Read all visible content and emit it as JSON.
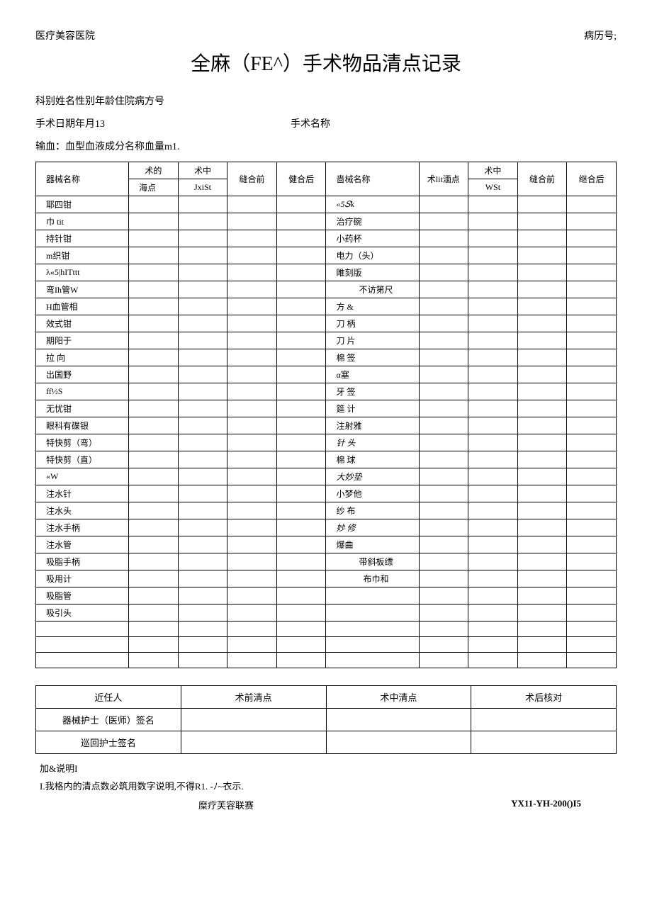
{
  "header": {
    "hospital": "医疗美容医院",
    "record_no_label": "病历号;"
  },
  "title": "全麻（FE^）手术物品清点记录",
  "info": {
    "line1": "科别姓名性别年龄住院病方号",
    "line2_left": "手术日期年月13",
    "line2_right": "手术名称",
    "line3": "输血：血型血液成分名称血量m1."
  },
  "table_headers": {
    "instrument_name": "器械名称",
    "pre_op_top": "术的",
    "pre_op_bot": "海点",
    "intra_op_top": "术中",
    "intra_op_bot": "JxiSt",
    "before_suture": "缝合前",
    "after_suture": "健合后",
    "instrument_name2": "啬械名称",
    "pre_op2": "术lit湎点",
    "intra_op2_top": "术中",
    "intra_op2_bot": "WSt",
    "before_suture2": "缝合前",
    "after_suture2": "继合后"
  },
  "rows_left": [
    "耶四钳",
    "巾        tit",
    "持针钳",
    "m织钳",
    "λ«5|hITttt",
    "弯Ih管W",
    "H血管相",
    "效式钳",
    "期阳于",
    "拉        向",
    "出国野",
    "ff½S",
    "无忧钳",
    "眼科有碟银",
    "特快剪（弯）",
    "特快剪（直）",
    "«W",
    "注水针",
    "注水头",
    "注水手柄",
    "注水管",
    "吸脂手柄",
    "吸用计",
    "吸脂管",
    "吸引头",
    "",
    "",
    ""
  ],
  "rows_right": [
    "«5𝑆k",
    "治疗碗",
    "小药杯",
    "电力（头）",
    "睢刻版",
    "不访第尺",
    "方        &",
    "刀        柄",
    "刀        片",
    "棉        签",
    "α塞",
    "牙        签",
    "筵        计",
    "注射雅",
    "针        头",
    "棉        球",
    "大妙垫",
    "小梦他",
    "纱        布",
    "妙        修",
    "爆曲",
    "带斜板缥",
    "布巾和",
    "",
    "",
    "",
    "",
    ""
  ],
  "rows_right_center": [
    false,
    false,
    false,
    false,
    false,
    true,
    false,
    false,
    false,
    false,
    false,
    false,
    false,
    false,
    false,
    false,
    false,
    false,
    false,
    false,
    false,
    true,
    true,
    false,
    false,
    false,
    false,
    false
  ],
  "rows_right_italic": [
    true,
    false,
    false,
    false,
    false,
    false,
    false,
    false,
    false,
    false,
    false,
    false,
    false,
    false,
    true,
    false,
    true,
    false,
    false,
    true,
    false,
    false,
    false,
    false,
    false,
    false,
    false,
    false
  ],
  "sig_table": {
    "h1": "近任人",
    "h2": "术前清点",
    "h3": "术中清点",
    "h4": "术后核对",
    "r1": "器械护士（医师）签名",
    "r2": "巡回护士签名"
  },
  "notes": {
    "n1": "加&说明I",
    "n2": "I.我格内的清点数必筑用数字说明,不得R1. -ﾉ~衣示."
  },
  "footer": {
    "left": "糜疗芙容联赛",
    "right": "YX11-YH-200()I5"
  }
}
